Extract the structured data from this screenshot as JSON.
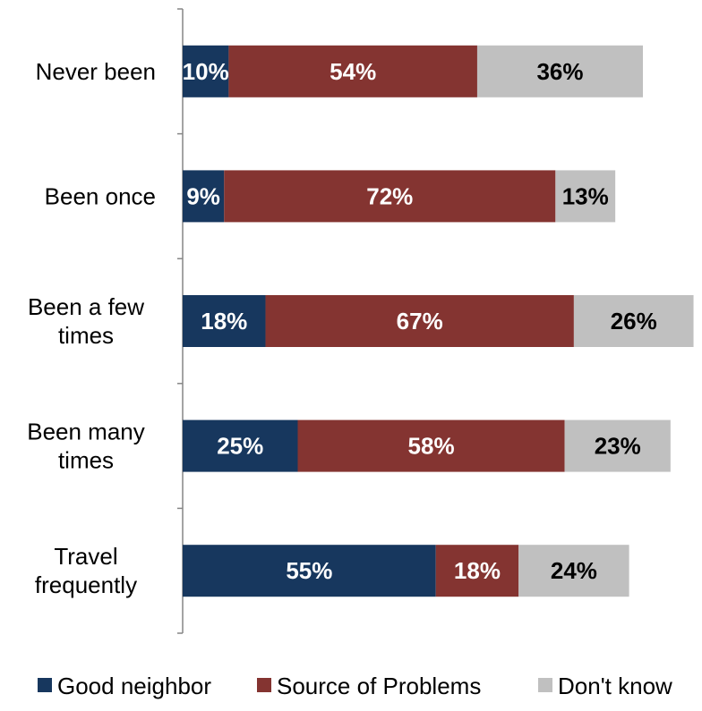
{
  "chart_data": {
    "type": "bar",
    "orientation": "horizontal",
    "stacked": true,
    "value_unit": "%",
    "categories": [
      [
        "Never been"
      ],
      [
        "Been once"
      ],
      [
        "Been a few",
        "times"
      ],
      [
        "Been many",
        "times"
      ],
      [
        "Travel",
        "frequently"
      ]
    ],
    "series": [
      {
        "name": "Good neighbor",
        "color": "#17375e",
        "label_color": "#ffffff",
        "values": [
          10,
          9,
          18,
          25,
          55
        ]
      },
      {
        "name": "Source of Problems",
        "color": "#843431",
        "label_color": "#ffffff",
        "values": [
          54,
          72,
          67,
          58,
          18
        ]
      },
      {
        "name": "Don't know",
        "color": "#c0c0c0",
        "label_color": "#000000",
        "values": [
          36,
          13,
          26,
          23,
          24
        ]
      }
    ],
    "data_labels": true,
    "grid": false,
    "legend_position": "bottom"
  }
}
